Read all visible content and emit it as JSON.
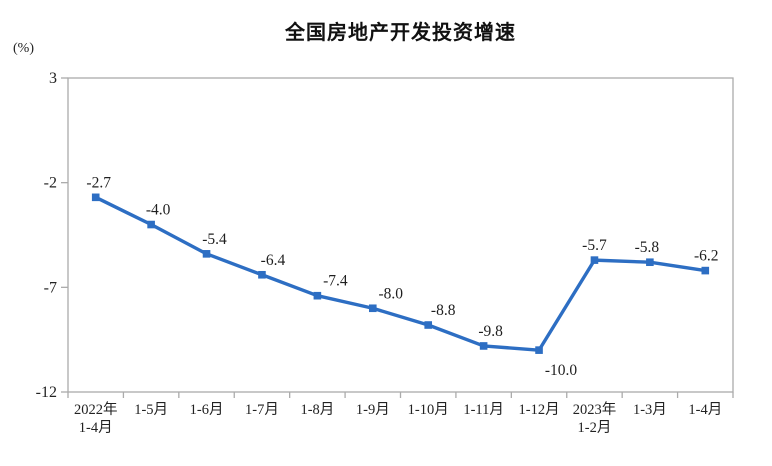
{
  "title": "全国房地产开发投资增速",
  "unit_label": "(%)",
  "colors": {
    "line": "#2D6EC3",
    "marker": "#2D6EC3",
    "axis": "#ABABAB",
    "data_label": "#1F1F1F",
    "tick_label": "#222222",
    "title": "#111111",
    "background": "#FFFFFF"
  },
  "chart_data": {
    "type": "line",
    "title": "全国房地产开发投资增速",
    "ylabel": "(%)",
    "xlabel": "",
    "categories": [
      "2022年\n1-4月",
      "1-5月",
      "1-6月",
      "1-7月",
      "1-8月",
      "1-9月",
      "1-10月",
      "1-11月",
      "1-12月",
      "2023年\n1-2月",
      "1-3月",
      "1-4月"
    ],
    "values": [
      -2.7,
      -4.0,
      -5.4,
      -6.4,
      -7.4,
      -8.0,
      -8.8,
      -9.8,
      -10.0,
      -5.7,
      -5.8,
      -6.2
    ],
    "value_labels": [
      "-2.7",
      "-4.0",
      "-5.4",
      "-6.4",
      "-7.4",
      "-8.0",
      "-8.8",
      "-9.8",
      "-10.0",
      "-5.7",
      "-5.8",
      "-6.2"
    ],
    "labels_below_indexes": [
      8
    ],
    "yticks": [
      3,
      -2,
      -7,
      -12
    ],
    "ylim": [
      -12,
      3
    ],
    "grid": false,
    "legend": "none",
    "marker": "square",
    "line_series_name": "全国房地产开发投资增速"
  }
}
